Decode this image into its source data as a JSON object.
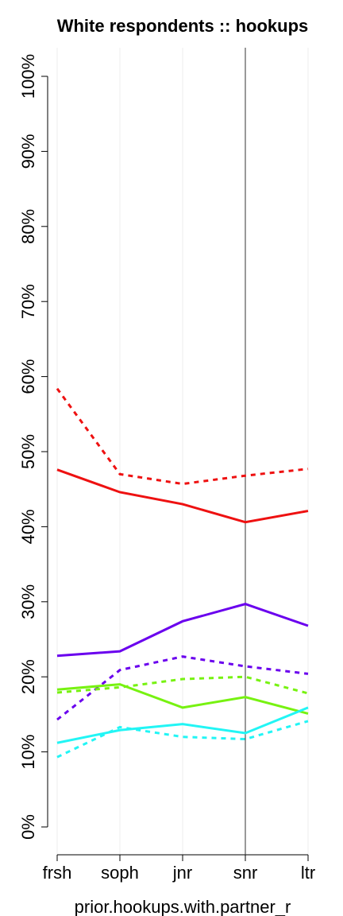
{
  "chart_data": {
    "type": "line",
    "title": "White respondents :: hookups",
    "x_label": "prior.hookups.with.partner_r",
    "categories": [
      "frsh",
      "soph",
      "jnr",
      "snr",
      "ltr"
    ],
    "ylim": [
      0,
      100
    ],
    "yticks": [
      {
        "value": 0,
        "label": "0%"
      },
      {
        "value": 10,
        "label": "10%"
      },
      {
        "value": 20,
        "label": "20%"
      },
      {
        "value": 30,
        "label": "30%"
      },
      {
        "value": 40,
        "label": "40%"
      },
      {
        "value": 50,
        "label": "50%"
      },
      {
        "value": 60,
        "label": "60%"
      },
      {
        "value": 70,
        "label": "70%"
      },
      {
        "value": 80,
        "label": "80%"
      },
      {
        "value": 90,
        "label": "90%"
      },
      {
        "value": 100,
        "label": "100%"
      }
    ],
    "grid": true,
    "marker_line_at": "snr",
    "series": [
      {
        "color": "#ee1111",
        "dashed": false,
        "values": [
          47.6,
          44.6,
          43.0,
          40.6,
          42.1
        ]
      },
      {
        "color": "#ee1111",
        "dashed": true,
        "values": [
          58.4,
          47.0,
          45.7,
          46.8,
          47.7
        ]
      },
      {
        "color": "#6a00ee",
        "dashed": false,
        "values": [
          22.8,
          23.4,
          27.4,
          29.7,
          26.8
        ]
      },
      {
        "color": "#6a00ee",
        "dashed": true,
        "values": [
          14.3,
          20.9,
          22.7,
          21.4,
          20.4
        ]
      },
      {
        "color": "#77f211",
        "dashed": false,
        "values": [
          18.3,
          19.0,
          15.9,
          17.3,
          15.1
        ]
      },
      {
        "color": "#77f211",
        "dashed": true,
        "values": [
          17.9,
          18.6,
          19.7,
          20.0,
          17.8
        ]
      },
      {
        "color": "#22f5f5",
        "dashed": false,
        "values": [
          11.2,
          12.9,
          13.7,
          12.5,
          15.9
        ]
      },
      {
        "color": "#22f5f5",
        "dashed": true,
        "values": [
          9.3,
          13.3,
          12.0,
          11.7,
          14.1
        ]
      }
    ]
  }
}
